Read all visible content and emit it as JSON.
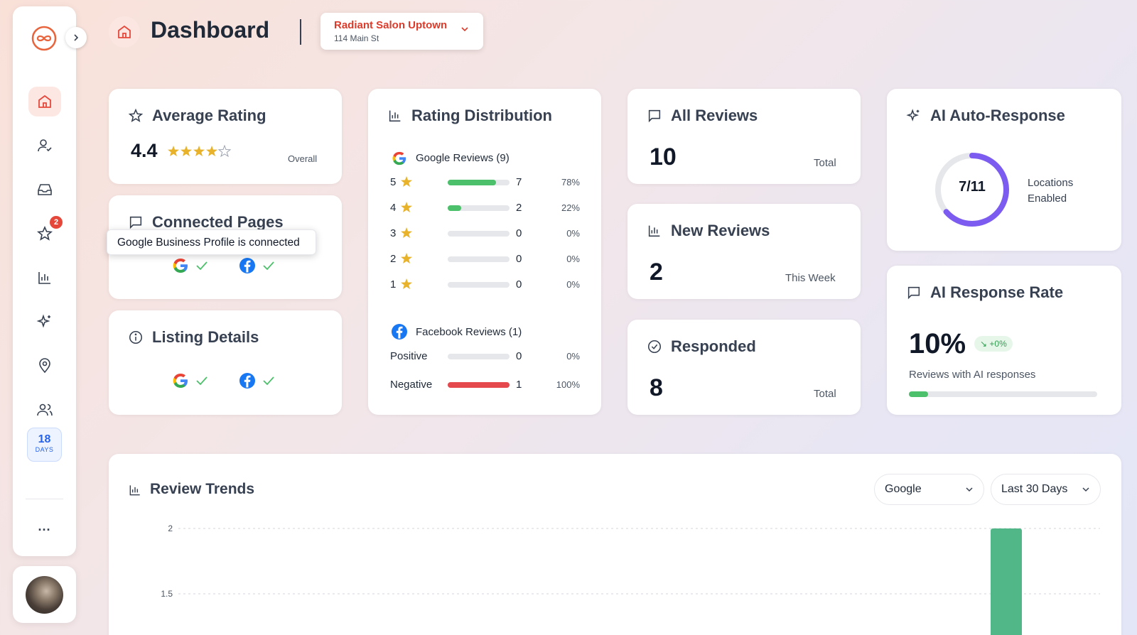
{
  "header": {
    "title": "Dashboard",
    "location_name": "Radiant Salon Uptown",
    "location_address": "114 Main St"
  },
  "sidebar": {
    "nav": [
      "home-icon",
      "user-check-icon",
      "inbox-icon",
      "star-icon",
      "bar-chart-icon",
      "sparkle-icon",
      "map-pin-icon",
      "users-icon"
    ],
    "badge_count": "2",
    "days_num": "18",
    "days_label": "DAYS",
    "more": "..."
  },
  "average_rating": {
    "title": "Average Rating",
    "value": "4.4",
    "stars": 4,
    "caption": "Overall"
  },
  "connected_pages": {
    "title": "Connected Pages",
    "tooltip": "Google Business Profile is connected"
  },
  "listing_details": {
    "title": "Listing Details"
  },
  "rating_distribution": {
    "title": "Rating Distribution",
    "google_label": "Google Reviews (9)",
    "rows": [
      {
        "stars": "5",
        "count": "7",
        "pct": "78%",
        "fill": 0.78
      },
      {
        "stars": "4",
        "count": "2",
        "pct": "22%",
        "fill": 0.22
      },
      {
        "stars": "3",
        "count": "0",
        "pct": "0%",
        "fill": 0
      },
      {
        "stars": "2",
        "count": "0",
        "pct": "0%",
        "fill": 0
      },
      {
        "stars": "1",
        "count": "0",
        "pct": "0%",
        "fill": 0
      }
    ],
    "facebook_label": "Facebook Reviews (1)",
    "fb_rows": [
      {
        "label": "Positive",
        "count": "0",
        "pct": "0%",
        "fill": 0,
        "color": "#e5e7eb"
      },
      {
        "label": "Negative",
        "count": "1",
        "pct": "100%",
        "fill": 1.0,
        "color": "#e5484d"
      }
    ]
  },
  "all_reviews": {
    "title": "All Reviews",
    "value": "10",
    "caption": "Total"
  },
  "new_reviews": {
    "title": "New Reviews",
    "value": "2",
    "caption": "This Week"
  },
  "responded": {
    "title": "Responded",
    "value": "8",
    "caption": "Total"
  },
  "ai_auto": {
    "title": "AI Auto-Response",
    "ring_label": "7/11",
    "ring_fraction": 0.636,
    "caption_line1": "Locations",
    "caption_line2": "Enabled"
  },
  "ai_rate": {
    "title": "AI Response Rate",
    "value": "10%",
    "delta": "↘ +0%",
    "caption": "Reviews with AI responses",
    "fill": 0.1
  },
  "trends": {
    "title": "Review Trends",
    "platform": "Google",
    "range": "Last 30 Days"
  },
  "chart_data": {
    "type": "bar",
    "title": "",
    "y_ticks": [
      "2",
      "1.5"
    ],
    "ylim": [
      0,
      2
    ],
    "visible_bar_value": 2,
    "bar_color": "#52b788"
  },
  "colors": {
    "accent": "#e5483b",
    "green": "#4cc06a",
    "purple": "#7c5cf0"
  }
}
